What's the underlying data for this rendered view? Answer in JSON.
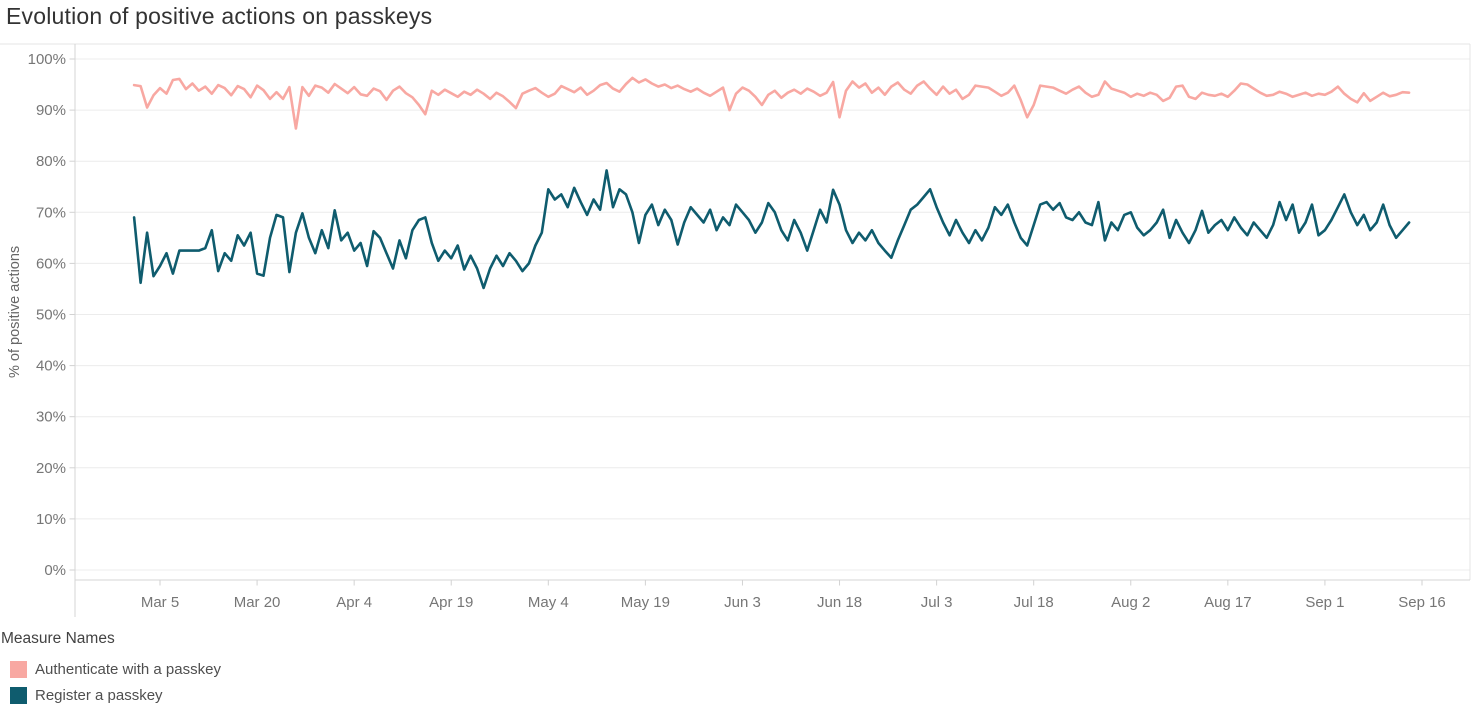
{
  "legend": {
    "title": "Measure Names"
  },
  "chart_data": {
    "type": "line",
    "title": "Evolution of positive actions on passkeys",
    "xlabel": "",
    "ylabel": "% of positive actions",
    "ylim": [
      0,
      100
    ],
    "grid": true,
    "legend_position": "bottom-left",
    "y_ticks": [
      "0%",
      "10%",
      "20%",
      "30%",
      "40%",
      "50%",
      "60%",
      "70%",
      "80%",
      "90%",
      "100%"
    ],
    "x_tick_labels": [
      "Mar 5",
      "Mar 20",
      "Apr 4",
      "Apr 19",
      "May 4",
      "May 19",
      "Jun 3",
      "Jun 18",
      "Jul 3",
      "Jul 18",
      "Aug 2",
      "Aug 17",
      "Sep 1",
      "Sep 16"
    ],
    "x_tick_day_indices": [
      4,
      19,
      34,
      49,
      64,
      79,
      94,
      109,
      124,
      139,
      154,
      169,
      184,
      199
    ],
    "x_unit": "day",
    "x_start_label": "Mar 1",
    "x_end_label": "Sep 14",
    "series": [
      {
        "name": "Authenticate with a passkey",
        "color": "#F8A8A2",
        "values": [
          94.9,
          94.7,
          90.5,
          92.9,
          94.3,
          93.2,
          95.9,
          96.1,
          94.1,
          95.2,
          93.8,
          94.6,
          93.2,
          94.9,
          94.3,
          92.9,
          94.7,
          94.1,
          92.5,
          94.8,
          93.9,
          92.2,
          93.5,
          92.2,
          94.5,
          86.4,
          94.5,
          92.8,
          94.8,
          94.4,
          93.4,
          95.1,
          94.2,
          93.3,
          94.5,
          93.1,
          92.8,
          94.2,
          93.7,
          92.0,
          93.8,
          94.6,
          93.3,
          92.5,
          91.0,
          89.2,
          93.8,
          93.0,
          94.0,
          93.3,
          92.6,
          93.6,
          93.0,
          94.0,
          93.2,
          92.2,
          93.4,
          92.7,
          91.6,
          90.4,
          93.2,
          93.8,
          94.3,
          93.4,
          92.6,
          93.2,
          94.7,
          94.1,
          93.5,
          94.4,
          93.0,
          93.8,
          94.9,
          95.3,
          94.2,
          93.6,
          95.1,
          96.3,
          95.4,
          96.0,
          95.2,
          94.6,
          95.0,
          94.3,
          94.8,
          94.1,
          93.6,
          94.2,
          93.4,
          92.8,
          93.6,
          94.4,
          90.0,
          93.2,
          94.4,
          93.8,
          92.6,
          91.0,
          93.0,
          93.8,
          92.4,
          93.4,
          94.0,
          93.2,
          94.2,
          93.6,
          92.8,
          93.4,
          95.5,
          88.6,
          93.8,
          95.6,
          94.4,
          95.2,
          93.4,
          94.4,
          93.0,
          94.6,
          95.4,
          94.0,
          93.2,
          94.8,
          95.6,
          94.2,
          93.0,
          94.6,
          93.2,
          94.0,
          92.2,
          93.0,
          94.8,
          94.6,
          94.4,
          93.6,
          92.8,
          93.4,
          94.8,
          92.0,
          88.6,
          91.0,
          94.8,
          94.6,
          94.4,
          93.8,
          93.2,
          94.0,
          94.6,
          93.4,
          92.6,
          93.0,
          95.6,
          94.2,
          93.8,
          93.4,
          92.6,
          93.2,
          92.8,
          93.4,
          93.0,
          91.8,
          92.4,
          94.6,
          94.8,
          92.6,
          92.2,
          93.4,
          93.0,
          92.8,
          93.2,
          92.6,
          93.8,
          95.2,
          95.0,
          94.2,
          93.4,
          92.8,
          93.0,
          93.6,
          93.2,
          92.6,
          93.0,
          93.4,
          92.8,
          93.2,
          93.0,
          93.6,
          94.6,
          93.2,
          92.2,
          91.5,
          93.3,
          91.8,
          92.6,
          93.4,
          92.7,
          93.0,
          93.5,
          93.4
        ]
      },
      {
        "name": "Register a passkey",
        "color": "#0F5C6E",
        "values": [
          69.0,
          56.2,
          66.0,
          57.5,
          59.5,
          62.0,
          58.0,
          62.5,
          62.5,
          62.5,
          62.5,
          63.0,
          66.5,
          58.5,
          62.0,
          60.5,
          65.5,
          63.5,
          66.0,
          58.0,
          57.6,
          65.0,
          69.5,
          69.0,
          58.3,
          66.0,
          69.8,
          65.0,
          62.0,
          66.5,
          63.0,
          70.4,
          64.5,
          66.0,
          62.5,
          64.0,
          59.5,
          66.3,
          65.0,
          62.0,
          59.0,
          64.5,
          61.0,
          66.5,
          68.5,
          69.0,
          64.0,
          60.5,
          62.5,
          61.0,
          63.5,
          58.8,
          61.5,
          59.0,
          55.2,
          59.0,
          61.5,
          59.5,
          62.0,
          60.5,
          58.5,
          60.0,
          63.5,
          66.0,
          74.5,
          72.5,
          73.5,
          71.0,
          74.8,
          72.0,
          69.5,
          72.5,
          70.5,
          78.2,
          71.0,
          74.5,
          73.5,
          70.0,
          64.0,
          69.5,
          71.5,
          67.5,
          70.5,
          68.5,
          63.7,
          68.0,
          71.0,
          69.5,
          68.0,
          70.5,
          66.5,
          69.0,
          67.5,
          71.5,
          70.0,
          68.5,
          66.0,
          68.0,
          71.8,
          70.0,
          66.5,
          64.5,
          68.5,
          66.0,
          62.5,
          66.5,
          70.5,
          68.0,
          74.4,
          71.5,
          66.5,
          64.0,
          66.0,
          64.5,
          66.5,
          64.0,
          62.5,
          61.1,
          64.5,
          67.5,
          70.5,
          71.5,
          73.0,
          74.5,
          71.0,
          68.0,
          65.5,
          68.5,
          66.0,
          64.0,
          66.5,
          64.5,
          67.0,
          71.0,
          69.5,
          71.5,
          68.0,
          65.0,
          63.5,
          67.5,
          71.5,
          72.0,
          70.5,
          71.8,
          69.0,
          68.5,
          70.0,
          68.0,
          67.5,
          72.0,
          64.5,
          68.0,
          66.5,
          69.5,
          70.0,
          67.0,
          65.5,
          66.5,
          68.0,
          70.5,
          65.0,
          68.5,
          66.0,
          64.0,
          66.5,
          70.3,
          66.0,
          67.5,
          68.5,
          66.5,
          69.0,
          67.0,
          65.5,
          68.0,
          66.5,
          65.0,
          67.5,
          72.0,
          68.5,
          71.5,
          66.0,
          68.0,
          71.5,
          65.5,
          66.5,
          68.5,
          71.0,
          73.5,
          70.0,
          67.5,
          69.5,
          66.5,
          68.0,
          71.5,
          67.5,
          65.0,
          66.5,
          68.0
        ]
      }
    ],
    "colors": {
      "grid": "#ECECEC",
      "axis_line": "#D5D5D5",
      "border": "#E4E4E4",
      "tick": "#D2D2D2",
      "axis_text": "#767676",
      "title_text": "#333333"
    }
  }
}
